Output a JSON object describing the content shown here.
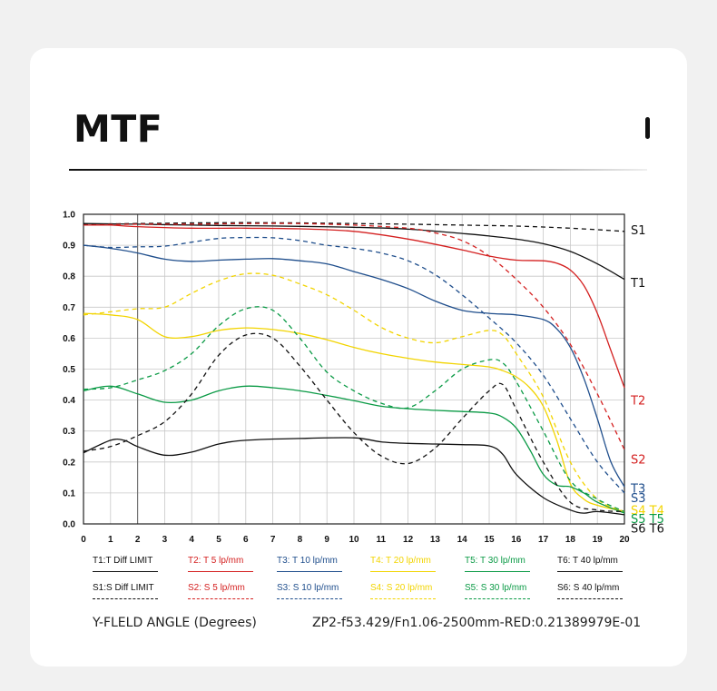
{
  "title": "MTF",
  "footer": {
    "axis_caption": "Y-FLELD ANGLE (Degrees)",
    "lens_info": "ZP2-f53.429/Fn1.06-2500mm-RED:0.21389979E-01"
  },
  "colors": {
    "black": "#111111",
    "red": "#d42020",
    "blue": "#1f4e8c",
    "yellow": "#f2d400",
    "green": "#0a9a45"
  },
  "legend": [
    {
      "label": "T1:T Diff LIMIT",
      "color": "#111111",
      "dash": false
    },
    {
      "label": "T2: T 5 lp/mm",
      "color": "#d42020",
      "dash": false
    },
    {
      "label": "T3: T 10 lp/mm",
      "color": "#1f4e8c",
      "dash": false
    },
    {
      "label": "T4: T 20 lp/mm",
      "color": "#f2d400",
      "dash": false
    },
    {
      "label": "T5: T 30 lp/mm",
      "color": "#0a9a45",
      "dash": false
    },
    {
      "label": "T6: T 40 lp/mm",
      "color": "#111111",
      "dash": false
    },
    {
      "label": "S1:S Diff LIMIT",
      "color": "#111111",
      "dash": true
    },
    {
      "label": "S2: S 5 lp/mm",
      "color": "#d42020",
      "dash": true
    },
    {
      "label": "S3: S  10 lp/mm",
      "color": "#1f4e8c",
      "dash": true
    },
    {
      "label": "S4: S  20 lp/mm",
      "color": "#f2d400",
      "dash": true
    },
    {
      "label": "S5: S 30 lp/mm",
      "color": "#0a9a45",
      "dash": true
    },
    {
      "label": "S6: S 40 lp/mm",
      "color": "#111111",
      "dash": true
    }
  ],
  "chart_data": {
    "type": "line",
    "xlim": [
      0,
      20
    ],
    "ylim": [
      0,
      1.0
    ],
    "x_ticks": [
      0,
      1,
      2,
      3,
      4,
      5,
      6,
      7,
      8,
      9,
      10,
      11,
      12,
      13,
      14,
      15,
      16,
      17,
      18,
      19,
      20
    ],
    "y_ticks": [
      "0.0",
      "0.1",
      "0.2",
      "0.3",
      "0.4",
      "0.5",
      "0.6",
      "0.7",
      "0.8",
      "0.9",
      "1.0"
    ],
    "grid": true,
    "marker_line_x": 2,
    "series": [
      {
        "name": "T1",
        "color": "#111111",
        "dash": false,
        "end_label": "T1",
        "x": [
          0,
          2,
          4,
          6,
          8,
          10,
          12,
          14,
          15,
          16,
          17,
          18,
          19,
          20
        ],
        "y": [
          0.97,
          0.968,
          0.965,
          0.963,
          0.961,
          0.958,
          0.952,
          0.938,
          0.93,
          0.92,
          0.905,
          0.88,
          0.84,
          0.79
        ]
      },
      {
        "name": "T2",
        "color": "#d42020",
        "dash": false,
        "end_label": "T2",
        "x": [
          0,
          1,
          2,
          4,
          6,
          8,
          10,
          12,
          14,
          15,
          16,
          17,
          17.5,
          18,
          18.5,
          19,
          19.5,
          20
        ],
        "y": [
          0.965,
          0.965,
          0.96,
          0.955,
          0.955,
          0.953,
          0.945,
          0.92,
          0.885,
          0.865,
          0.852,
          0.85,
          0.842,
          0.82,
          0.77,
          0.68,
          0.56,
          0.44
        ]
      },
      {
        "name": "T3",
        "color": "#1f4e8c",
        "dash": false,
        "end_label": "T3",
        "x": [
          0,
          1,
          2,
          3,
          4,
          5,
          6,
          7,
          8,
          9,
          10,
          11,
          12,
          13,
          14,
          15,
          16,
          17,
          17.5,
          18,
          18.5,
          19,
          19.5,
          20
        ],
        "y": [
          0.9,
          0.89,
          0.875,
          0.855,
          0.848,
          0.852,
          0.855,
          0.857,
          0.85,
          0.84,
          0.815,
          0.79,
          0.76,
          0.72,
          0.69,
          0.68,
          0.675,
          0.66,
          0.63,
          0.57,
          0.47,
          0.34,
          0.2,
          0.12
        ]
      },
      {
        "name": "T4",
        "color": "#f2d400",
        "dash": false,
        "end_label": "T4",
        "x": [
          0,
          1,
          2,
          3,
          4,
          5,
          6,
          7,
          8,
          9,
          10,
          11,
          12,
          13,
          14,
          15,
          15.5,
          16,
          16.5,
          17,
          17.5,
          18,
          18.5,
          19,
          20
        ],
        "y": [
          0.68,
          0.675,
          0.66,
          0.605,
          0.605,
          0.625,
          0.633,
          0.628,
          0.615,
          0.595,
          0.57,
          0.55,
          0.535,
          0.523,
          0.515,
          0.507,
          0.495,
          0.475,
          0.44,
          0.38,
          0.27,
          0.13,
          0.08,
          0.06,
          0.04
        ]
      },
      {
        "name": "T5",
        "color": "#0a9a45",
        "dash": false,
        "end_label": "T5",
        "x": [
          0,
          1,
          2,
          3,
          4,
          5,
          6,
          7,
          8,
          9,
          10,
          11,
          12,
          13,
          14,
          15,
          15.5,
          16,
          16.5,
          17,
          17.5,
          18,
          18.5,
          19,
          20
        ],
        "y": [
          0.43,
          0.445,
          0.42,
          0.393,
          0.4,
          0.43,
          0.445,
          0.44,
          0.43,
          0.415,
          0.398,
          0.38,
          0.372,
          0.367,
          0.363,
          0.358,
          0.345,
          0.31,
          0.24,
          0.16,
          0.125,
          0.12,
          0.1,
          0.07,
          0.035
        ]
      },
      {
        "name": "T6",
        "color": "#111111",
        "dash": false,
        "end_label": "T6",
        "x": [
          0,
          1,
          1.5,
          2,
          3,
          4,
          5,
          6,
          8,
          10,
          11,
          12,
          13,
          14,
          15,
          15.5,
          16,
          17,
          18,
          18.5,
          19,
          20
        ],
        "y": [
          0.23,
          0.27,
          0.27,
          0.25,
          0.222,
          0.232,
          0.258,
          0.27,
          0.276,
          0.278,
          0.265,
          0.26,
          0.258,
          0.256,
          0.252,
          0.225,
          0.16,
          0.085,
          0.045,
          0.035,
          0.04,
          0.03
        ]
      },
      {
        "name": "S1",
        "color": "#111111",
        "dash": true,
        "end_label": "S1",
        "x": [
          0,
          2,
          4,
          6,
          8,
          10,
          12,
          14,
          16,
          18,
          20
        ],
        "y": [
          0.968,
          0.97,
          0.972,
          0.973,
          0.972,
          0.97,
          0.968,
          0.965,
          0.962,
          0.955,
          0.945
        ]
      },
      {
        "name": "S2",
        "color": "#d42020",
        "dash": true,
        "end_label": "S2",
        "x": [
          0,
          2,
          4,
          6,
          8,
          10,
          12,
          13,
          14,
          15,
          16,
          17,
          18,
          19,
          20
        ],
        "y": [
          0.965,
          0.968,
          0.968,
          0.97,
          0.97,
          0.965,
          0.955,
          0.94,
          0.915,
          0.865,
          0.79,
          0.7,
          0.58,
          0.42,
          0.24
        ]
      },
      {
        "name": "S3",
        "color": "#1f4e8c",
        "dash": true,
        "end_label": "S3",
        "x": [
          0,
          1,
          2,
          3,
          4,
          5,
          6,
          7,
          8,
          9,
          10,
          11,
          12,
          13,
          14,
          15,
          16,
          17,
          18,
          19,
          20
        ],
        "y": [
          0.9,
          0.893,
          0.895,
          0.897,
          0.91,
          0.922,
          0.925,
          0.924,
          0.915,
          0.9,
          0.89,
          0.875,
          0.85,
          0.805,
          0.74,
          0.665,
          0.585,
          0.48,
          0.34,
          0.2,
          0.1
        ]
      },
      {
        "name": "S4",
        "color": "#f2d400",
        "dash": true,
        "end_label": "S4",
        "x": [
          0,
          1,
          2,
          3,
          4,
          5,
          6,
          7,
          8,
          9,
          10,
          11,
          12,
          13,
          14,
          15,
          15.5,
          16,
          17,
          18,
          19,
          20
        ],
        "y": [
          0.675,
          0.685,
          0.695,
          0.7,
          0.745,
          0.785,
          0.808,
          0.803,
          0.775,
          0.74,
          0.69,
          0.635,
          0.6,
          0.585,
          0.605,
          0.625,
          0.61,
          0.55,
          0.41,
          0.2,
          0.08,
          0.04
        ]
      },
      {
        "name": "S5",
        "color": "#0a9a45",
        "dash": true,
        "end_label": "S5",
        "x": [
          0,
          1,
          2,
          3,
          4,
          5,
          6,
          7,
          8,
          9,
          10,
          11,
          12,
          13,
          14,
          15,
          15.5,
          16,
          17,
          18,
          19,
          20
        ],
        "y": [
          0.435,
          0.44,
          0.465,
          0.495,
          0.55,
          0.64,
          0.695,
          0.69,
          0.6,
          0.49,
          0.43,
          0.39,
          0.375,
          0.43,
          0.5,
          0.53,
          0.52,
          0.46,
          0.3,
          0.14,
          0.08,
          0.04
        ]
      },
      {
        "name": "S6",
        "color": "#111111",
        "dash": true,
        "end_label": "S6",
        "x": [
          0,
          1,
          2,
          3,
          4,
          5,
          6,
          7,
          8,
          9,
          10,
          11,
          12,
          13,
          14,
          15,
          15.5,
          16,
          17,
          18,
          19,
          20
        ],
        "y": [
          0.235,
          0.25,
          0.285,
          0.33,
          0.42,
          0.545,
          0.61,
          0.6,
          0.51,
          0.4,
          0.295,
          0.22,
          0.195,
          0.245,
          0.34,
          0.43,
          0.45,
          0.37,
          0.2,
          0.07,
          0.045,
          0.04
        ]
      }
    ],
    "end_labels": [
      {
        "text": "S1",
        "color": "#111111",
        "y": 0.95
      },
      {
        "text": "T1",
        "color": "#111111",
        "y": 0.78
      },
      {
        "text": "T2",
        "color": "#d42020",
        "y": 0.4
      },
      {
        "text": "S2",
        "color": "#d42020",
        "y": 0.21
      },
      {
        "text": "T3",
        "color": "#1f4e8c",
        "y": 0.116
      },
      {
        "text": "S3",
        "color": "#1f4e8c",
        "y": 0.085
      },
      {
        "text": "S4 T4",
        "color": "#f2d400",
        "y": 0.046
      },
      {
        "text": "S5 T5",
        "color": "#0a9a45",
        "y": 0.018
      },
      {
        "text": "S6 T6",
        "color": "#111111",
        "y": -0.013
      }
    ]
  }
}
